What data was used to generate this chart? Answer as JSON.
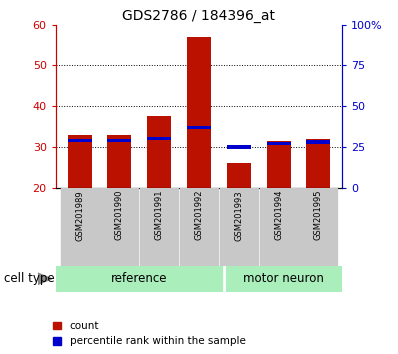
{
  "title": "GDS2786 / 184396_at",
  "samples": [
    "GSM201989",
    "GSM201990",
    "GSM201991",
    "GSM201992",
    "GSM201993",
    "GSM201994",
    "GSM201995"
  ],
  "group_labels": [
    "reference",
    "motor neuron"
  ],
  "count_values": [
    33.0,
    33.0,
    37.5,
    57.0,
    26.0,
    31.5,
    32.0
  ],
  "count_base": 20,
  "percentile_values": [
    29.0,
    29.0,
    30.0,
    37.0,
    25.0,
    27.0,
    28.0
  ],
  "ylim_left": [
    20,
    60
  ],
  "ylim_right": [
    0,
    100
  ],
  "yticks_left": [
    20,
    30,
    40,
    50,
    60
  ],
  "yticks_right": [
    0,
    25,
    50,
    75,
    100
  ],
  "ytick_labels_right": [
    "0",
    "25",
    "50",
    "75",
    "100%"
  ],
  "left_axis_color": "#cc0000",
  "right_axis_color": "#0000cc",
  "bar_color_red": "#bb1100",
  "bar_color_blue": "#0000cc",
  "bar_width": 0.6,
  "background_label": "#c8c8c8",
  "background_group_ref": "#aaeebb",
  "background_group_mn": "#aaeebb",
  "legend_count": "count",
  "legend_percentile": "percentile rank within the sample",
  "cell_type_label": "cell type",
  "ref_count": 4,
  "mn_count": 3
}
